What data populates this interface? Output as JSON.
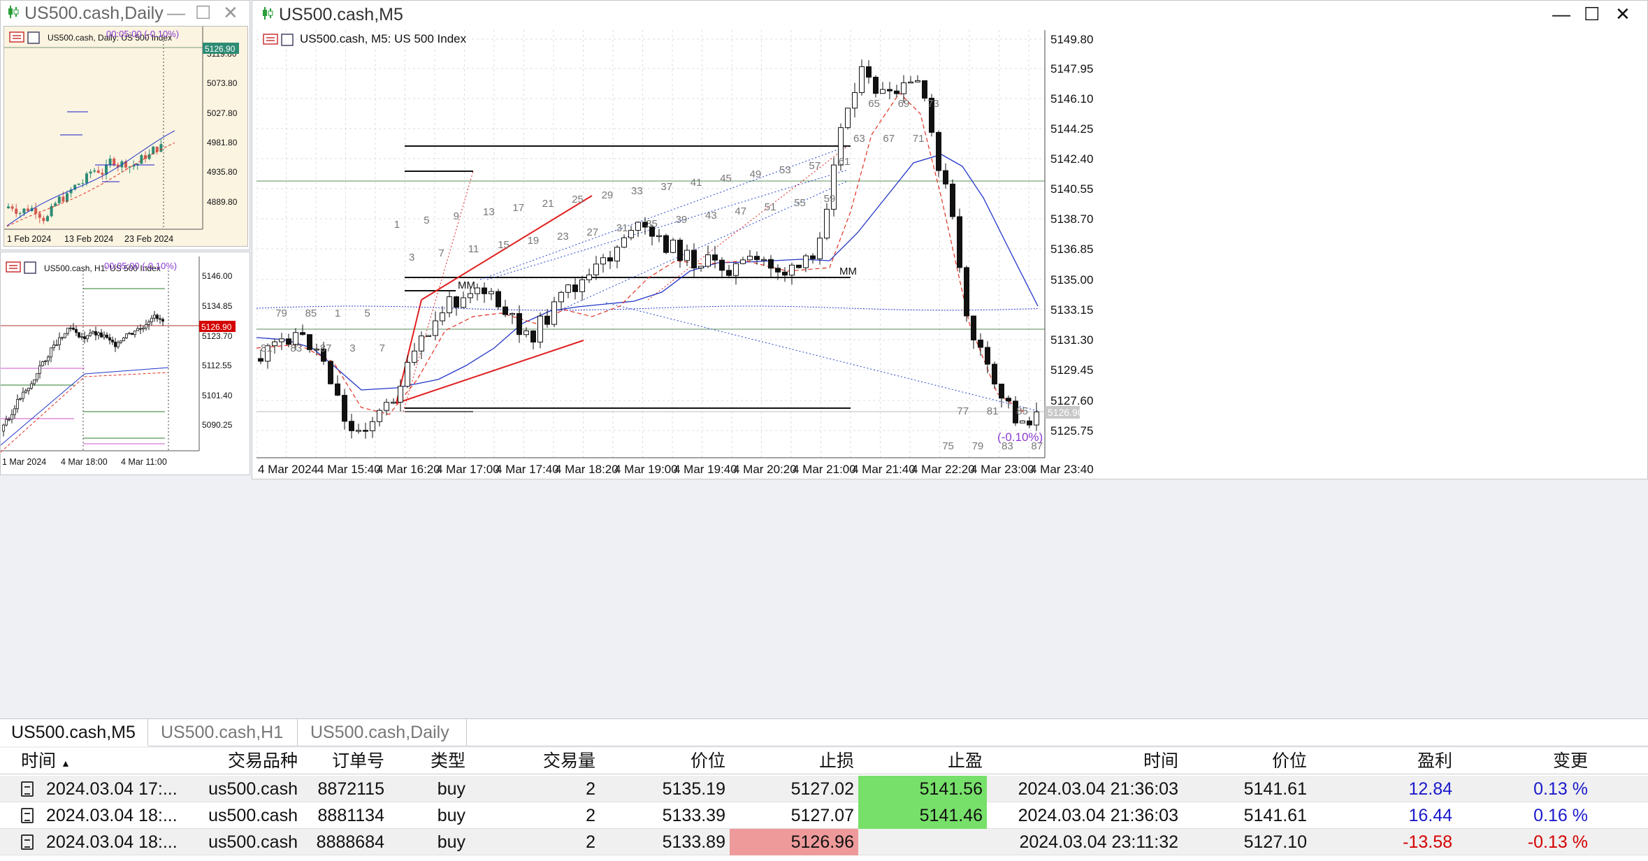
{
  "daily": {
    "title": "US500.cash,Daily",
    "chart_label": "US500.cash, Daily:  US 500 Index",
    "timer": "00:05:00 (-0.10%)",
    "price_marker": "5126.90",
    "y_ticks": [
      "5119.80",
      "5073.80",
      "5027.80",
      "4981.80",
      "4935.80",
      "4889.80"
    ],
    "x_ticks": [
      "1 Feb 2024",
      "13 Feb 2024",
      "23 Feb 2024"
    ]
  },
  "h1": {
    "chart_label": "US500.cash, H1:  US 500 Index",
    "timer": "00:05:00 (-0.10%)",
    "price_marker": "5126.90",
    "y_ticks": [
      "5146.00",
      "5134.85",
      "5123.70",
      "5112.55",
      "5101.40",
      "5090.25"
    ],
    "x_ticks": [
      "1 Mar 2024",
      "4 Mar 18:00",
      "4 Mar 11:00"
    ]
  },
  "m5": {
    "title": "US500.cash,M5",
    "chart_label": "US500.cash, M5:  US 500 Index",
    "price_marker": "5126.90",
    "change_label": "(-0.10%)",
    "mm_labels": [
      "MM",
      "MM"
    ],
    "y_ticks": [
      "5149.80",
      "5147.95",
      "5146.10",
      "5144.25",
      "5142.40",
      "5140.55",
      "5138.70",
      "5136.85",
      "5135.00",
      "5133.15",
      "5131.30",
      "5129.45",
      "5127.60",
      "5125.75"
    ],
    "x_ticks": [
      "4 Mar 2024",
      "4 Mar 15:40",
      "4 Mar 16:20",
      "4 Mar 17:00",
      "4 Mar 17:40",
      "4 Mar 18:20",
      "4 Mar 19:00",
      "4 Mar 19:40",
      "4 Mar 20:20",
      "4 Mar 21:00",
      "4 Mar 21:40",
      "4 Mar 22:20",
      "4 Mar 23:00",
      "4 Mar 23:40"
    ],
    "bar_numbers": [
      "81",
      "79",
      "83",
      "85",
      "87",
      "1",
      "3",
      "5",
      "7",
      "1",
      "3",
      "5",
      "7",
      "9",
      "11",
      "13",
      "15",
      "17",
      "19",
      "21",
      "23",
      "25",
      "27",
      "29",
      "31",
      "33",
      "35",
      "37",
      "39",
      "41",
      "43",
      "45",
      "47",
      "49",
      "51",
      "53",
      "55",
      "57",
      "59",
      "61",
      "63",
      "65",
      "67",
      "69",
      "71",
      "73",
      "75",
      "77",
      "79",
      "81",
      "83",
      "85",
      "87"
    ]
  },
  "tabs": [
    "US500.cash,M5",
    "US500.cash,H1",
    "US500.cash,Daily"
  ],
  "orders": {
    "headers": [
      "时间",
      "交易品种",
      "订单号",
      "类型",
      "交易量",
      "价位",
      "止损",
      "止盈",
      "时间",
      "价位",
      "盈利",
      "变更"
    ],
    "rows": [
      [
        "2024.03.04 17:...",
        "us500.cash",
        "8872115",
        "buy",
        "2",
        "5135.19",
        "5127.02",
        "5141.56",
        "2024.03.04 21:36:03",
        "5141.61",
        "12.84",
        "0.13 %"
      ],
      [
        "2024.03.04 18:...",
        "us500.cash",
        "8881134",
        "buy",
        "2",
        "5133.39",
        "5127.07",
        "5141.46",
        "2024.03.04 21:36:03",
        "5141.61",
        "16.44",
        "0.16 %"
      ],
      [
        "2024.03.04 18:...",
        "us500.cash",
        "8888684",
        "buy",
        "2",
        "5133.89",
        "5126.96",
        "",
        "2024.03.04 23:11:32",
        "5127.10",
        "-13.58",
        "-0.13 %"
      ]
    ]
  },
  "colors": {
    "bull": "#2e8b74",
    "bear": "#d25a4f",
    "profit": "#1a1acc",
    "loss": "#d40000",
    "tp_fill": "#77e06a",
    "sl_fill": "#ee9a9a",
    "ma_blue": "#2236c8",
    "ma_red": "#e03020"
  }
}
